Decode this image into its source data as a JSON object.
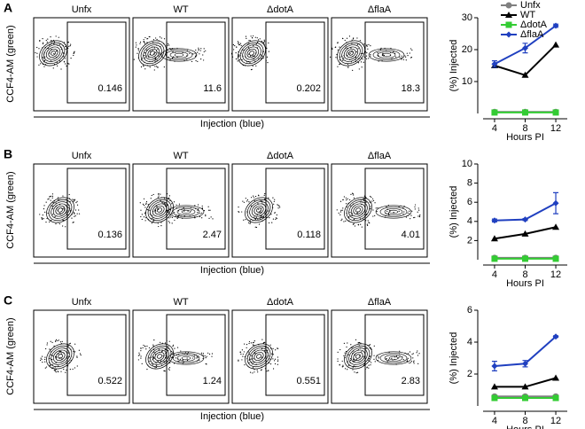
{
  "panels": [
    {
      "label": "A",
      "y_label": "CCF4-AM (green)",
      "x_label": "Injection (blue)",
      "samples": [
        {
          "name": "Unfx",
          "gate": 0.146
        },
        {
          "name": "WT",
          "gate": 11.6
        },
        {
          "name": "ΔdotA",
          "gate": 0.202
        },
        {
          "name": "ΔflaA",
          "gate": 18.3
        }
      ]
    },
    {
      "label": "B",
      "y_label": "CCF4-AM (green)",
      "x_label": "Injection (blue)",
      "samples": [
        {
          "name": "Unfx",
          "gate": 0.136
        },
        {
          "name": "WT",
          "gate": 2.47
        },
        {
          "name": "ΔdotA",
          "gate": 0.118
        },
        {
          "name": "ΔflaA",
          "gate": 4.01
        }
      ]
    },
    {
      "label": "C",
      "y_label": "CCF4-AM (green)",
      "x_label": "Injection (blue)",
      "samples": [
        {
          "name": "Unfx",
          "gate": 0.522
        },
        {
          "name": "WT",
          "gate": 1.24
        },
        {
          "name": "ΔdotA",
          "gate": 0.551
        },
        {
          "name": "ΔflaA",
          "gate": 2.83
        }
      ]
    }
  ],
  "chart_data": [
    {
      "type": "line",
      "y_label": "(%) Injected",
      "x_label": "Hours PI",
      "x": [
        4,
        8,
        12
      ],
      "xlim": [
        2.5,
        13.5
      ],
      "xticks": [
        4,
        8,
        12
      ],
      "ylim": [
        0,
        30
      ],
      "yticks": [
        10,
        20,
        30
      ],
      "legend": "top-left",
      "series": [
        {
          "name": "Unfx",
          "color": "#808080",
          "marker": "circle",
          "values": [
            0.5,
            0.5,
            0.5
          ]
        },
        {
          "name": "WT",
          "color": "#000000",
          "marker": "triangle",
          "values": [
            15,
            12,
            21.5
          ]
        },
        {
          "name": "ΔdotA",
          "color": "#33cc33",
          "marker": "square",
          "values": [
            0.3,
            0.3,
            0.3
          ]
        },
        {
          "name": "ΔflaA",
          "color": "#2040c0",
          "marker": "diamond",
          "values": [
            15.5,
            20.5,
            27.5
          ],
          "errors": [
            1,
            1.5,
            0.5
          ]
        }
      ]
    },
    {
      "type": "line",
      "y_label": "(%) Injected",
      "x_label": "Hours PI",
      "x": [
        4,
        8,
        12
      ],
      "xlim": [
        2.5,
        13.5
      ],
      "xticks": [
        4,
        8,
        12
      ],
      "ylim": [
        0,
        10
      ],
      "yticks": [
        2,
        4,
        6,
        8,
        10
      ],
      "series": [
        {
          "name": "Unfx",
          "color": "#808080",
          "marker": "circle",
          "values": [
            0.2,
            0.2,
            0.2
          ]
        },
        {
          "name": "WT",
          "color": "#000000",
          "marker": "triangle",
          "values": [
            2.2,
            2.7,
            3.4
          ]
        },
        {
          "name": "ΔdotA",
          "color": "#33cc33",
          "marker": "square",
          "values": [
            0.1,
            0.1,
            0.1
          ]
        },
        {
          "name": "ΔflaA",
          "color": "#2040c0",
          "marker": "diamond",
          "values": [
            4.1,
            4.2,
            5.9
          ],
          "errors": [
            0.15,
            0.1,
            1.1
          ]
        }
      ]
    },
    {
      "type": "line",
      "y_label": "(%) Injected",
      "x_label": "Hours PI",
      "x": [
        4,
        8,
        12
      ],
      "xlim": [
        2.5,
        13.5
      ],
      "xticks": [
        4,
        8,
        12
      ],
      "ylim": [
        0,
        6
      ],
      "yticks": [
        2,
        4,
        6
      ],
      "series": [
        {
          "name": "Unfx",
          "color": "#808080",
          "marker": "circle",
          "values": [
            0.6,
            0.6,
            0.6
          ]
        },
        {
          "name": "WT",
          "color": "#000000",
          "marker": "triangle",
          "values": [
            1.2,
            1.2,
            1.75
          ]
        },
        {
          "name": "ΔdotA",
          "color": "#33cc33",
          "marker": "square",
          "values": [
            0.5,
            0.5,
            0.5
          ]
        },
        {
          "name": "ΔflaA",
          "color": "#2040c0",
          "marker": "diamond",
          "values": [
            2.5,
            2.65,
            4.35
          ],
          "errors": [
            0.3,
            0.2,
            0.05
          ]
        }
      ]
    }
  ]
}
